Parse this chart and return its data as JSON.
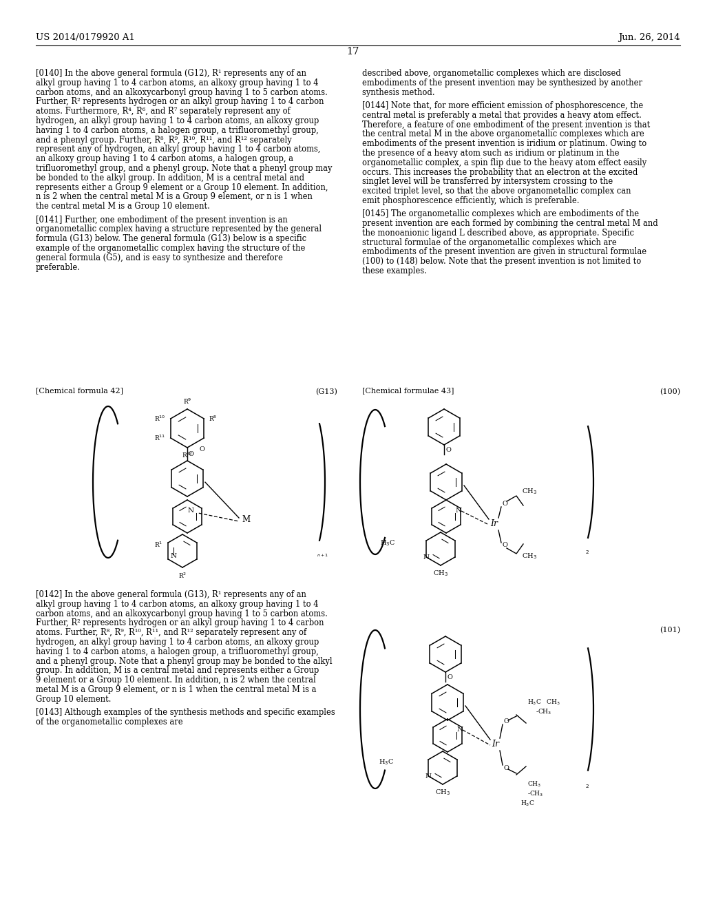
{
  "background_color": "#ffffff",
  "text_color": "#000000",
  "header_left": "US 2014/0179920 A1",
  "header_right": "Jun. 26, 2014",
  "page_number": "17",
  "body_fontsize": 8.3,
  "header_fontsize": 9.5,
  "label_fontsize": 8.0,
  "left_col_paragraphs": [
    {
      "tag": "[0140]",
      "text": "In the above general formula (G12), R¹ represents any of an alkyl group having 1 to 4 carbon atoms, an alkoxy group having 1 to 4 carbon atoms, and an alkoxycarbonyl group having 1 to 5 carbon atoms. Further, R² represents hydrogen or an alkyl group having 1 to 4 carbon atoms. Furthermore, R⁴, R⁶, and R⁷ separately represent any of hydrogen, an alkyl group having 1 to 4 carbon atoms, an alkoxy group having 1 to 4 carbon atoms, a halogen group, a trifluoromethyl group, and a phenyl group. Further, R⁸, R⁹, R¹⁰, R¹¹, and R¹² separately represent any of hydrogen, an alkyl group having 1 to 4 carbon atoms, an alkoxy group having 1 to 4 carbon atoms, a halogen group, a trifluoromethyl group, and a phenyl group. Note that a phenyl group may be bonded to the alkyl group. In addition, M is a central metal and represents either a Group 9 element or a Group 10 element. In addition, n is 2 when the central metal M is a Group 9 element, or n is 1 when the central metal M is a Group 10 element."
    },
    {
      "tag": "[0141]",
      "text": "Further, one embodiment of the present invention is an organometallic complex having a structure represented by the general formula (G13) below. The general formula (G13) below is a specific example of the organometallic complex having the structure of the general formula (G5), and is easy to synthesize and therefore preferable."
    }
  ],
  "right_col_paragraphs_top": [
    {
      "tag": "",
      "text": "described above, organometallic complexes which are disclosed embodiments of the present invention may be synthesized by another synthesis method."
    },
    {
      "tag": "[0144]",
      "text": "Note that, for more efficient emission of phosphorescence, the central metal is preferably a metal that provides a heavy atom effect. Therefore, a feature of one embodiment of the present invention is that the central metal M in the above organometallic complexes which are embodiments of the present invention is iridium or platinum. Owing to the presence of a heavy atom such as iridium or platinum in the organometallic complex, a spin flip due to the heavy atom effect easily occurs. This increases the probability that an electron at the excited singlet level will be transferred by intersystem crossing to the excited triplet level, so that the above organometallic complex can emit phosphorescence efficiently, which is preferable."
    },
    {
      "tag": "[0145]",
      "text": "The organometallic complexes which are embodiments of the present invention are each formed by combining the central metal M and the monoanionic ligand L described above, as appropriate. Specific structural formulae of the organometallic complexes which are embodiments of the present invention are given in structural formulae (100) to (148) below. Note that the present invention is not limited to these examples."
    }
  ],
  "left_col_paragraphs_bottom": [
    {
      "tag": "[0142]",
      "text": "In the above general formula (G13), R¹ represents any of an alkyl group having 1 to 4 carbon atoms, an alkoxy group having 1 to 4 carbon atoms, and an alkoxycarbonyl group having 1 to 5 carbon atoms. Further, R² represents hydrogen or an alkyl group having 1 to 4 carbon atoms. Further, R⁸, R⁹, R¹⁰, R¹¹, and R¹² separately represent any of hydrogen, an alkyl group having 1 to 4 carbon atoms, an alkoxy group having 1 to 4 carbon atoms, a halogen group, a trifluoromethyl group, and a phenyl group. Note that a phenyl group may be bonded to the alkyl group. In addition, M is a central metal and represents either a Group 9 element or a Group 10 element. In addition, n is 2 when the central metal M is a Group 9 element, or n is 1 when the central metal M is a Group 10 element."
    },
    {
      "tag": "[0143]",
      "text": "Although examples of the synthesis methods and specific examples of the organometallic complexes are"
    }
  ]
}
